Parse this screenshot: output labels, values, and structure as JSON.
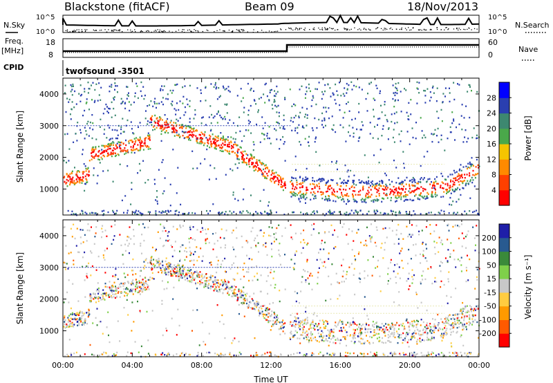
{
  "header": {
    "title": "Blackstone (fitACF)",
    "beam": "Beam 09",
    "date": "18/Nov/2013"
  },
  "noise_panel": {
    "left_label": "N.Sky",
    "right_label": "N.Search",
    "left_ticks": [
      "10^5",
      "10^0"
    ],
    "right_ticks": [
      "10^5",
      "10^0"
    ]
  },
  "freq_panel": {
    "left_label_1": "Freq.",
    "left_label_2": "[MHz]",
    "right_label": "Nave",
    "left_ticks": [
      "18",
      "8"
    ],
    "right_ticks": [
      "60",
      "0"
    ]
  },
  "cpid_panel": {
    "label": "CPID",
    "value": "twofsound  -3501"
  },
  "colors": {
    "power_scale": [
      "#0000ff",
      "#2a3fb0",
      "#3d8870",
      "#4aa84a",
      "#f5c400",
      "#ff8a00",
      "#ff4000",
      "#ff0000"
    ],
    "velocity_scale": [
      "#1e1ea8",
      "#285a90",
      "#3a8a3a",
      "#7fd04a",
      "#c8c8c8",
      "#ffcc40",
      "#ff9a00",
      "#ff5a00",
      "#ff0000"
    ]
  },
  "chart_data": [
    {
      "type": "heatmap",
      "panel": "power",
      "ylabel": "Slant Range [km]",
      "xlabel": "Time UT",
      "x_ticks": [
        "00:00",
        "04:00",
        "08:00",
        "12:00",
        "16:00",
        "20:00",
        "00:00"
      ],
      "y_ticks": [
        "1000",
        "2000",
        "3000",
        "4000"
      ],
      "ylim": [
        180,
        4500
      ],
      "colorbar_label": "Power [dB]",
      "colorbar_ticks": [
        "28",
        "24",
        "20",
        "16",
        "12",
        "8",
        "4"
      ],
      "colorbar_range": [
        0,
        30
      ]
    },
    {
      "type": "heatmap",
      "panel": "velocity",
      "ylabel": "Slant Range [km]",
      "xlabel": "Time UT",
      "x_ticks": [
        "00:00",
        "04:00",
        "08:00",
        "12:00",
        "16:00",
        "20:00",
        "00:00"
      ],
      "y_ticks": [
        "1000",
        "2000",
        "3000",
        "4000"
      ],
      "ylim": [
        180,
        4500
      ],
      "colorbar_label": "Velocity [m s⁻¹]",
      "colorbar_ticks": [
        "200",
        "100",
        "50",
        "15",
        "-15",
        "-50",
        "-100",
        "-200"
      ],
      "colorbar_range": [
        -250,
        250
      ]
    }
  ]
}
